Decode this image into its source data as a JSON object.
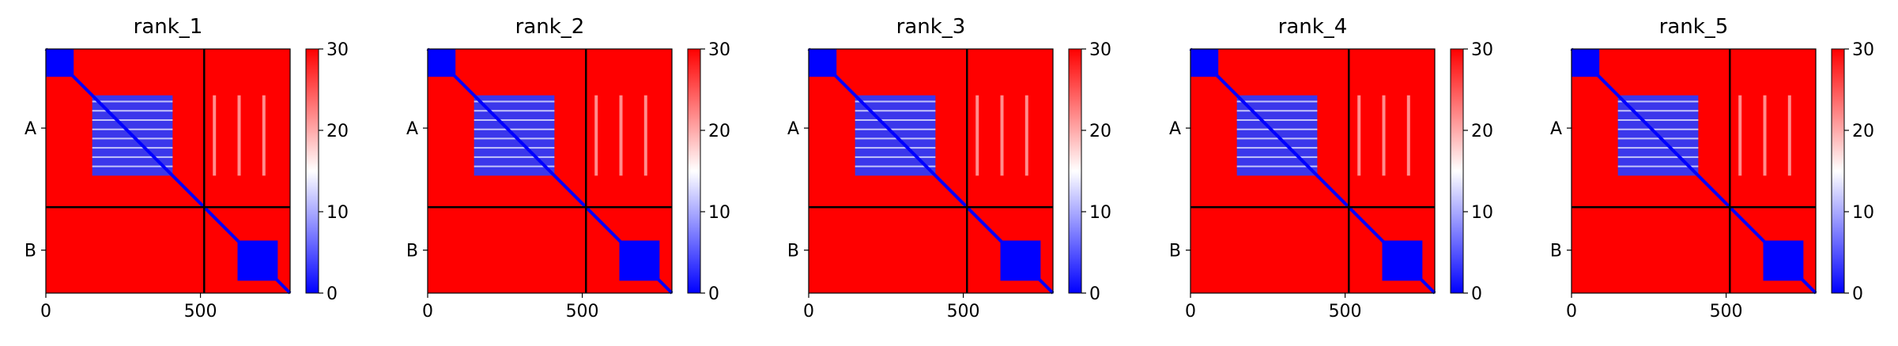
{
  "colors": {
    "low": "#0000ff",
    "mid": "#ffffff",
    "high": "#ff0000",
    "divider": "#000000"
  },
  "chart_data": [
    {
      "type": "heatmap",
      "title": "rank_1",
      "ylabel": "",
      "xlabel": "",
      "x_ticks": [
        0,
        500
      ],
      "y_tick_labels": [
        "A",
        "B"
      ],
      "chain_boundary": 512,
      "sequence_length": 790,
      "colorbar": {
        "min": 0,
        "max": 30,
        "ticks": [
          0,
          10,
          20,
          30
        ]
      }
    },
    {
      "type": "heatmap",
      "title": "rank_2",
      "ylabel": "",
      "xlabel": "",
      "x_ticks": [
        0,
        500
      ],
      "y_tick_labels": [
        "A",
        "B"
      ],
      "chain_boundary": 512,
      "sequence_length": 790,
      "colorbar": {
        "min": 0,
        "max": 30,
        "ticks": [
          0,
          10,
          20,
          30
        ]
      }
    },
    {
      "type": "heatmap",
      "title": "rank_3",
      "ylabel": "",
      "xlabel": "",
      "x_ticks": [
        0,
        500
      ],
      "y_tick_labels": [
        "A",
        "B"
      ],
      "chain_boundary": 512,
      "sequence_length": 790,
      "colorbar": {
        "min": 0,
        "max": 30,
        "ticks": [
          0,
          10,
          20,
          30
        ]
      }
    },
    {
      "type": "heatmap",
      "title": "rank_4",
      "ylabel": "",
      "xlabel": "",
      "x_ticks": [
        0,
        500
      ],
      "y_tick_labels": [
        "A",
        "B"
      ],
      "chain_boundary": 512,
      "sequence_length": 790,
      "colorbar": {
        "min": 0,
        "max": 30,
        "ticks": [
          0,
          10,
          20,
          30
        ]
      }
    },
    {
      "type": "heatmap",
      "title": "rank_5",
      "ylabel": "",
      "xlabel": "",
      "x_ticks": [
        0,
        500
      ],
      "y_tick_labels": [
        "A",
        "B"
      ],
      "chain_boundary": 512,
      "sequence_length": 790,
      "colorbar": {
        "min": 0,
        "max": 30,
        "ticks": [
          0,
          10,
          20,
          30
        ]
      }
    }
  ]
}
